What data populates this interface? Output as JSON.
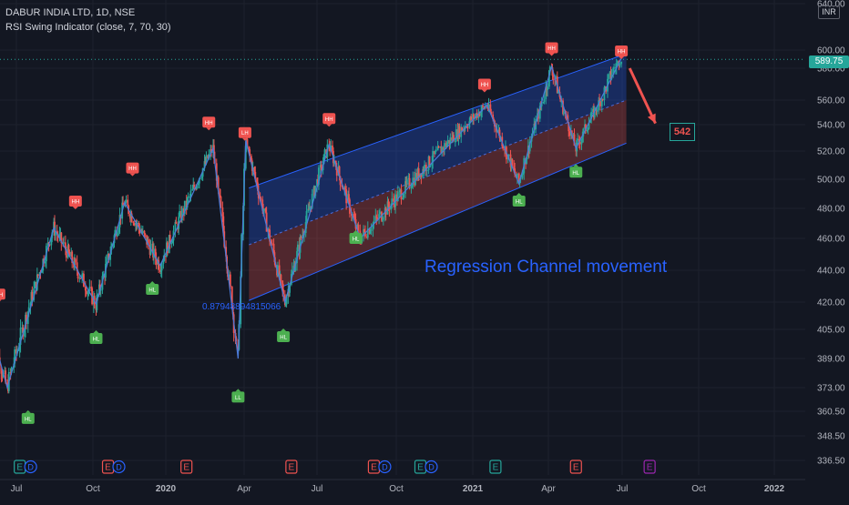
{
  "header": {
    "symbol": "DABUR INDIA LTD, 1D, NSE",
    "indicator": "RSI Swing Indicator (close, 7, 70, 30)"
  },
  "currency": "INR",
  "last_price": "589.75",
  "annotation_text": "Regression Channel movement",
  "target_label": "542",
  "corr_label": "0.87948894815066",
  "chart_data": {
    "type": "candlestick",
    "y_ticks": [
      "640.00",
      "600.00",
      "580.00",
      "560.00",
      "540.00",
      "520.00",
      "500.00",
      "480.00",
      "460.00",
      "440.00",
      "420.00",
      "405.00",
      "389.00",
      "373.00",
      "360.50",
      "348.50",
      "336.50"
    ],
    "x_ticks": [
      "Jul",
      "Oct",
      "2020",
      "Apr",
      "Jul",
      "Oct",
      "2021",
      "Apr",
      "Jul",
      "Oct",
      "2022"
    ],
    "swing_labels": [
      {
        "text": "HH",
        "type": "high",
        "date": "2019-06-10",
        "price": 425
      },
      {
        "text": "HL",
        "type": "low",
        "date": "2019-07-15",
        "price": 357
      },
      {
        "text": "HH",
        "type": "high",
        "date": "2019-09-10",
        "price": 485
      },
      {
        "text": "HL",
        "type": "low",
        "date": "2019-10-05",
        "price": 400
      },
      {
        "text": "HH",
        "type": "high",
        "date": "2019-11-20",
        "price": 508
      },
      {
        "text": "HL",
        "type": "low",
        "date": "2019-12-15",
        "price": 428
      },
      {
        "text": "HH",
        "type": "high",
        "date": "2020-02-20",
        "price": 542
      },
      {
        "text": "LH",
        "type": "high",
        "date": "2020-04-02",
        "price": 534
      },
      {
        "text": "LL",
        "type": "low",
        "date": "2020-03-25",
        "price": 368
      },
      {
        "text": "HL",
        "type": "low",
        "date": "2020-05-20",
        "price": 401
      },
      {
        "text": "HH",
        "type": "high",
        "date": "2020-07-15",
        "price": 545
      },
      {
        "text": "HL",
        "type": "low",
        "date": "2020-08-15",
        "price": 460
      },
      {
        "text": "HH",
        "type": "high",
        "date": "2021-01-15",
        "price": 570
      },
      {
        "text": "HL",
        "type": "low",
        "date": "2021-02-25",
        "price": 485
      },
      {
        "text": "HH",
        "type": "high",
        "date": "2021-04-05",
        "price": 602
      },
      {
        "text": "HL",
        "type": "low",
        "date": "2021-05-05",
        "price": 505
      },
      {
        "text": "HH",
        "type": "high",
        "date": "2021-06-30",
        "price": 599
      }
    ],
    "earnings_markers": [
      {
        "date": "2019-07-05",
        "label": "E",
        "color": "#26a69a",
        "dividend": true
      },
      {
        "date": "2019-10-20",
        "label": "E",
        "color": "#ef5350",
        "dividend": true
      },
      {
        "date": "2020-01-25",
        "label": "E",
        "color": "#ef5350",
        "dividend": false
      },
      {
        "date": "2020-05-30",
        "label": "E",
        "color": "#ef5350",
        "dividend": false
      },
      {
        "date": "2020-09-05",
        "label": "E",
        "color": "#ef5350",
        "dividend": true
      },
      {
        "date": "2020-10-30",
        "label": "E",
        "color": "#26a69a",
        "dividend": true
      },
      {
        "date": "2021-01-28",
        "label": "E",
        "color": "#26a69a",
        "dividend": false
      },
      {
        "date": "2021-05-05",
        "label": "E",
        "color": "#ef5350",
        "dividend": false
      },
      {
        "date": "2021-08-03",
        "label": "E",
        "color": "#9c27b0",
        "dividend": false
      }
    ],
    "channel": {
      "start_date": "2020-04-07",
      "end_date": "2021-07-06",
      "upper": [
        494,
        596
      ],
      "middle": [
        456,
        560
      ],
      "lower": [
        421,
        526
      ]
    },
    "zigzag": [
      [
        "2019-06-01",
        405
      ],
      [
        "2019-06-20",
        373
      ],
      [
        "2019-08-15",
        467
      ],
      [
        "2019-10-05",
        419
      ],
      [
        "2019-11-10",
        484
      ],
      [
        "2019-12-25",
        443
      ],
      [
        "2020-02-25",
        522
      ],
      [
        "2020-03-25",
        389
      ],
      [
        "2020-04-03",
        528
      ],
      [
        "2020-05-22",
        420
      ],
      [
        "2020-07-15",
        525
      ],
      [
        "2020-08-20",
        460
      ],
      [
        "2021-01-18",
        556
      ],
      [
        "2021-02-25",
        497
      ],
      [
        "2021-04-05",
        582
      ],
      [
        "2021-05-05",
        522
      ],
      [
        "2021-06-30",
        591
      ]
    ],
    "forecast_arrow": {
      "from": [
        "2021-07-10",
        580
      ],
      "to": [
        "2021-08-10",
        541
      ]
    },
    "colors": {
      "bg": "#131722",
      "up": "#26a69a",
      "down": "#ef5350",
      "channel_line": "#2962ff",
      "accent": "#4b7bd9"
    }
  }
}
